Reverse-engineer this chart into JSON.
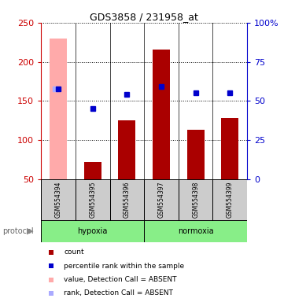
{
  "title": "GDS3858 / 231958_at",
  "samples": [
    "GSM554394",
    "GSM554395",
    "GSM554396",
    "GSM554397",
    "GSM554398",
    "GSM554399"
  ],
  "bar_values": [
    null,
    72,
    125,
    216,
    113,
    128
  ],
  "bar_color": "#aa0000",
  "absent_bar_value": 230,
  "absent_bar_color": "#ffaaaa",
  "blue_dot_values": [
    165,
    140,
    158,
    168,
    160,
    160
  ],
  "blue_dot_color": "#0000cc",
  "absent_rank_value": 165,
  "absent_rank_color": "#aaaaff",
  "ylim_left": [
    50,
    250
  ],
  "ylim_right": [
    0,
    100
  ],
  "yticks_left": [
    50,
    100,
    150,
    200,
    250
  ],
  "yticks_right": [
    0,
    25,
    50,
    75,
    100
  ],
  "ytick_labels_right": [
    "0",
    "25",
    "50",
    "75",
    "100%"
  ],
  "left_axis_color": "#cc0000",
  "right_axis_color": "#0000cc",
  "protocol_label": "protocol",
  "hypoxia_label": "hypoxia",
  "normoxia_label": "normoxia",
  "protocol_bg_color": "#88ee88",
  "sample_bg_color": "#cccccc",
  "legend_items": [
    {
      "color": "#aa0000",
      "label": "count"
    },
    {
      "color": "#0000cc",
      "label": "percentile rank within the sample"
    },
    {
      "color": "#ffaaaa",
      "label": "value, Detection Call = ABSENT"
    },
    {
      "color": "#aaaaff",
      "label": "rank, Detection Call = ABSENT"
    }
  ],
  "figsize": [
    3.61,
    3.84
  ],
  "dpi": 100
}
